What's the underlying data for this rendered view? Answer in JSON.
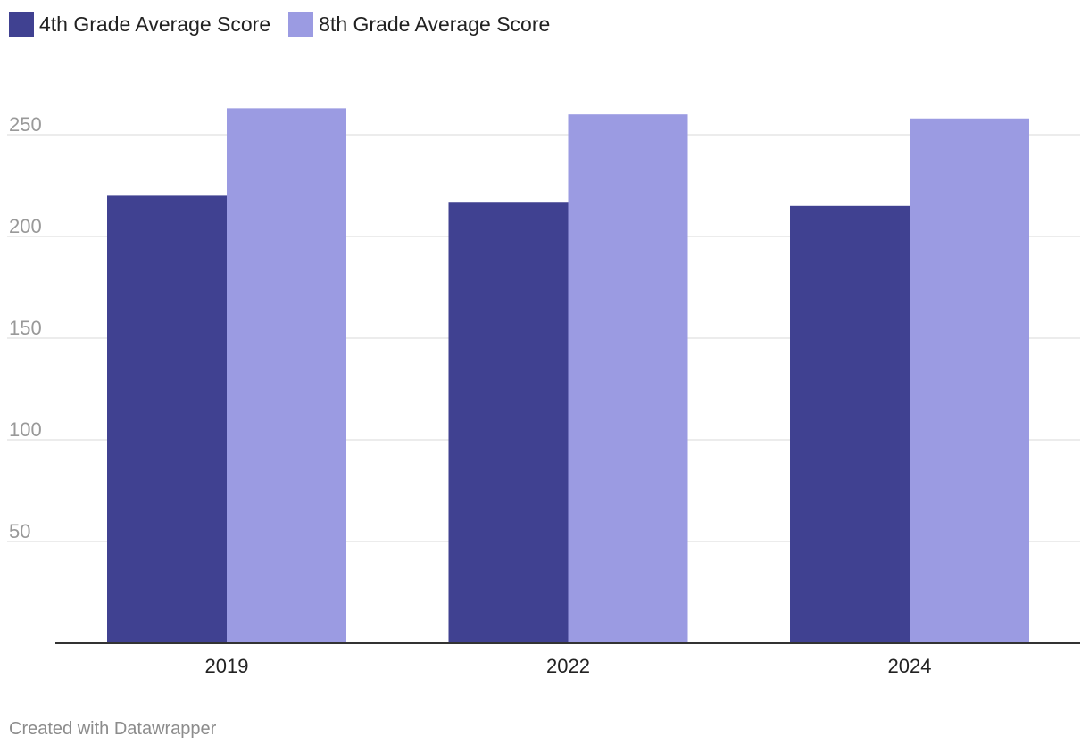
{
  "chart_data": {
    "type": "bar",
    "categories": [
      "2019",
      "2022",
      "2024"
    ],
    "series": [
      {
        "name": "4th Grade Average Score",
        "values": [
          220,
          217,
          215
        ],
        "color": "#404191"
      },
      {
        "name": "8th Grade Average Score",
        "values": [
          263,
          260,
          258
        ],
        "color": "#9b9be2"
      }
    ],
    "ylim": [
      0,
      275
    ],
    "yticks": [
      50,
      100,
      150,
      200,
      250
    ],
    "grid": true,
    "legend": "top-left"
  },
  "footer": {
    "credit": "Created with Datawrapper"
  },
  "colors": {
    "gridline": "#e6e6e6",
    "baseline": "#333333"
  }
}
